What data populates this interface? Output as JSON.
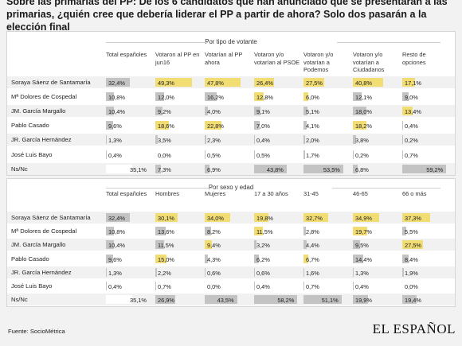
{
  "headline": "Sobre las primarias del PP: De los 6 candidatos que han anunciado que se presentarán a las primarias, ¿quién cree que debería liderar el PP a partir de ahora? Solo dos pasarán a la elección final",
  "source": "Fuente: SocioMétrica",
  "logo": "EL ESPAÑOL",
  "colors": {
    "highlight": "#f2dd73",
    "neutral": "#c3c3c3",
    "ns_total": "#ffffff"
  },
  "chart_data": [
    {
      "type": "table",
      "title": "Por tipo de votante",
      "columns": [
        "Total españoles",
        "Votaron al PP en jun16",
        "Votarían al PP ahora",
        "Votaron y/o votarían al PSOE",
        "Votaron y/o votarían a Podemos",
        "Votaron y/o votarían a Ciudadanos",
        "Resto de opciones"
      ],
      "rows": [
        {
          "label": "Soraya Sáenz de Santamaría",
          "values": [
            32.4,
            49.3,
            47.8,
            26.4,
            27.5,
            40.8,
            17.1
          ],
          "text": [
            "32,4%",
            "49,3%",
            "47,8%",
            "26,4%",
            "27,5%",
            "40,8%",
            "17,1%"
          ]
        },
        {
          "label": "Mª Dolores de Cospedal",
          "values": [
            10.8,
            12.0,
            16.2,
            12.8,
            6.0,
            12.1,
            9.0
          ],
          "text": [
            "10,8%",
            "12,0%",
            "16,2%",
            "12,8%",
            "6,0%",
            "12,1%",
            "9,0%"
          ]
        },
        {
          "label": "JM. García Margallo",
          "values": [
            10.4,
            9.2,
            4.0,
            9.1,
            5.1,
            18.0,
            13.4
          ],
          "text": [
            "10,4%",
            "9,2%",
            "4,0%",
            "9,1%",
            "5,1%",
            "18,0%",
            "13,4%"
          ]
        },
        {
          "label": "Pablo Casado",
          "values": [
            9.6,
            18.6,
            22.8,
            7.0,
            4.1,
            18.2,
            0.4
          ],
          "text": [
            "9,6%",
            "18,6%",
            "22,8%",
            "7,0%",
            "4,1%",
            "18,2%",
            "0,4%"
          ]
        },
        {
          "label": "JR. García Hernández",
          "values": [
            1.3,
            3.5,
            2.3,
            0.4,
            2.0,
            3.8,
            0.2
          ],
          "text": [
            "1,3%",
            "3,5%",
            "2,3%",
            "0,4%",
            "2,0%",
            "3,8%",
            "0,2%"
          ]
        },
        {
          "label": "José Luis Bayo",
          "values": [
            0.4,
            0.0,
            0.5,
            0.5,
            1.7,
            0.2,
            0.7
          ],
          "text": [
            "0,4%",
            "0,0%",
            "0,5%",
            "0,5%",
            "1,7%",
            "0,2%",
            "0,7%"
          ]
        },
        {
          "label": "Ns/Nc",
          "values": [
            35.1,
            7.3,
            6.9,
            43.8,
            53.5,
            6.8,
            59.2
          ],
          "text": [
            "35,1%",
            "7,3%",
            "6,9%",
            "43,8%",
            "53,5%",
            "6,8%",
            "59,2%"
          ]
        }
      ],
      "highlighted": [
        [
          0,
          1
        ],
        [
          0,
          2
        ],
        [
          0,
          3
        ],
        [
          0,
          4
        ],
        [
          0,
          5
        ],
        [
          0,
          6
        ],
        [
          1,
          3
        ],
        [
          1,
          4
        ],
        [
          2,
          6
        ],
        [
          3,
          1
        ],
        [
          3,
          2
        ],
        [
          3,
          5
        ]
      ]
    },
    {
      "type": "table",
      "title": "Por sexo y edad",
      "columns": [
        "Total españoles",
        "Hombres",
        "Mujeres",
        "17 a 30 años",
        "31-45",
        "46-65",
        "66 o más"
      ],
      "rows": [
        {
          "label": "Soraya Sáenz de Santamaría",
          "values": [
            32.4,
            30.1,
            34.0,
            19.8,
            32.7,
            34.9,
            37.3
          ],
          "text": [
            "32,4%",
            "30,1%",
            "34,0%",
            "19,8%",
            "32,7%",
            "34,9%",
            "37,3%"
          ]
        },
        {
          "label": "Mª Dolores de Cospedal",
          "values": [
            10.8,
            13.6,
            8.2,
            11.5,
            2.8,
            19.7,
            5.5
          ],
          "text": [
            "10,8%",
            "13,6%",
            "8,2%",
            "11,5%",
            "2,8%",
            "19,7%",
            "5,5%"
          ]
        },
        {
          "label": "JM. García Margallo",
          "values": [
            10.4,
            11.5,
            9.4,
            3.2,
            4.4,
            9.5,
            27.5
          ],
          "text": [
            "10,4%",
            "11,5%",
            "9,4%",
            "3,2%",
            "4,4%",
            "9,5%",
            "27,5%"
          ]
        },
        {
          "label": "Pablo Casado",
          "values": [
            9.6,
            15.0,
            4.3,
            6.2,
            6.7,
            14.4,
            8.4
          ],
          "text": [
            "9,6%",
            "15,0%",
            "4,3%",
            "6,2%",
            "6,7%",
            "14,4%",
            "8,4%"
          ]
        },
        {
          "label": "JR. García Hernández",
          "values": [
            1.3,
            2.2,
            0.6,
            0.6,
            1.6,
            1.3,
            1.9
          ],
          "text": [
            "1,3%",
            "2,2%",
            "0,6%",
            "0,6%",
            "1,6%",
            "1,3%",
            "1,9%"
          ]
        },
        {
          "label": "José Luis Bayo",
          "values": [
            0.4,
            0.7,
            0.0,
            0.4,
            0.7,
            0.4,
            0.0
          ],
          "text": [
            "0,4%",
            "0,7%",
            "0,0%",
            "0,4%",
            "0,7%",
            "0,4%",
            "0,0%"
          ]
        },
        {
          "label": "Ns/Nc",
          "values": [
            35.1,
            26.9,
            43.5,
            58.2,
            51.1,
            19.9,
            19.4
          ],
          "text": [
            "35,1%",
            "26,9%",
            "43,5%",
            "58,2%",
            "51,1%",
            "19,9%",
            "19,4%"
          ]
        }
      ],
      "highlighted": [
        [
          0,
          1
        ],
        [
          0,
          2
        ],
        [
          0,
          3
        ],
        [
          0,
          4
        ],
        [
          0,
          5
        ],
        [
          0,
          6
        ],
        [
          1,
          3
        ],
        [
          1,
          5
        ],
        [
          2,
          2
        ],
        [
          2,
          6
        ],
        [
          3,
          1
        ],
        [
          3,
          4
        ]
      ]
    }
  ]
}
